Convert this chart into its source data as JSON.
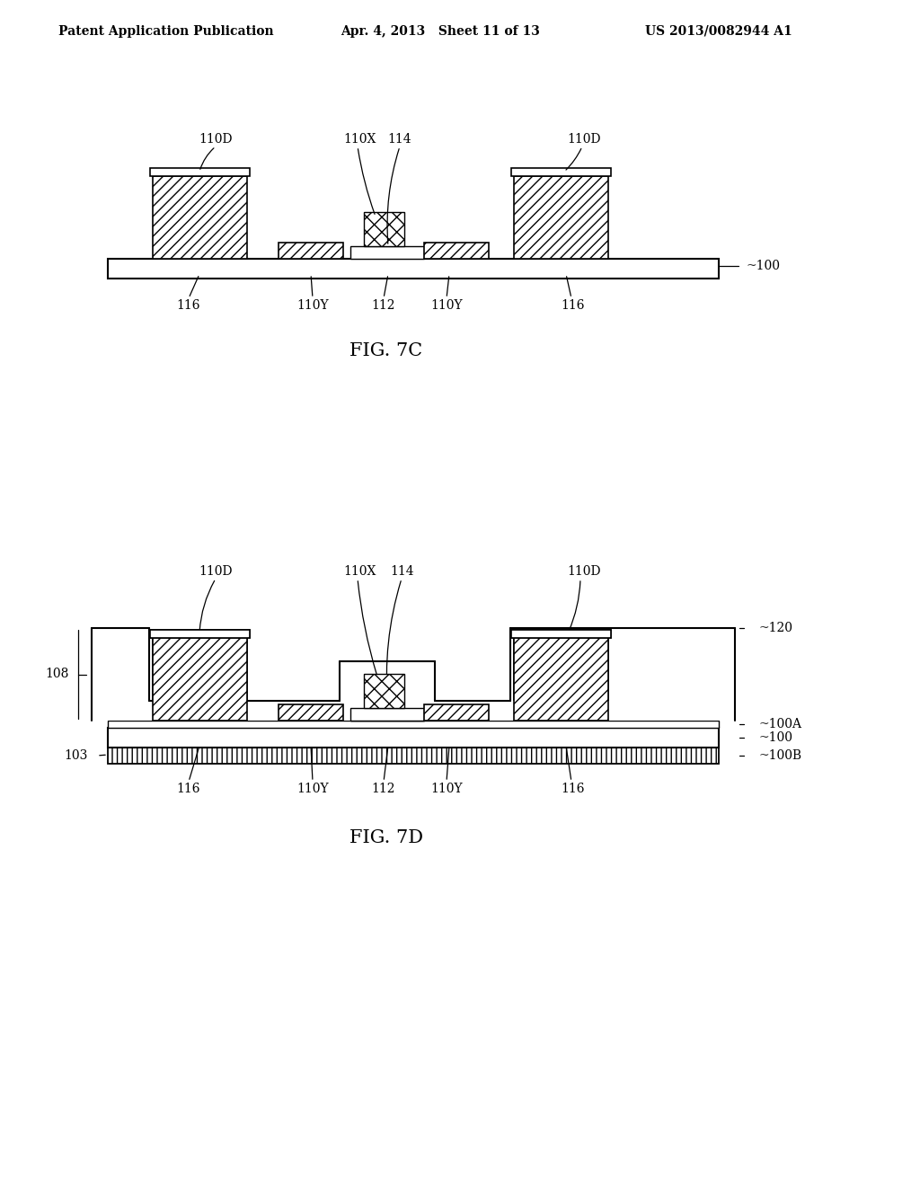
{
  "bg_color": "#ffffff",
  "header_left": "Patent Application Publication",
  "header_mid": "Apr. 4, 2013   Sheet 11 of 13",
  "header_right": "US 2013/0082944 A1",
  "fig7c_label": "FIG. 7C",
  "fig7d_label": "FIG. 7D"
}
